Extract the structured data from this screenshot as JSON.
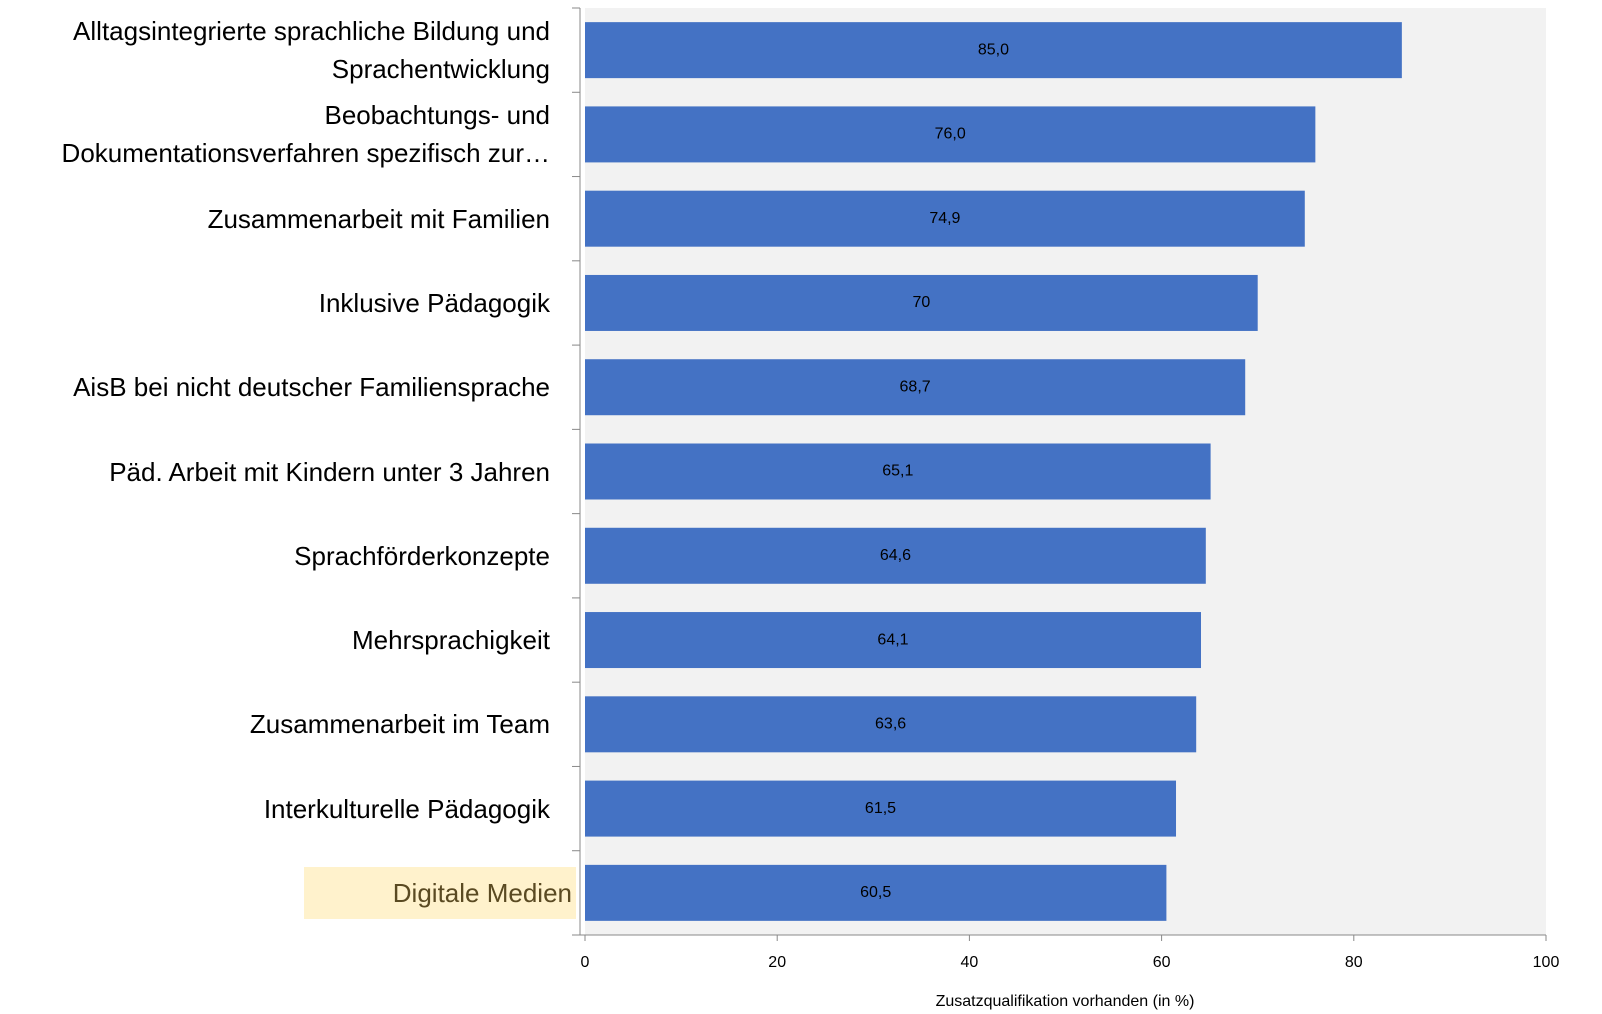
{
  "chart_data": {
    "type": "barh",
    "categories": [
      "Alltagsintegrierte sprachliche Bildung und\nSprachentwicklung",
      "Beobachtungs- und\nDokumentationsverfahren spezifisch zur…",
      "Zusammenarbeit mit Familien",
      "Inklusive Pädagogik",
      "AisB bei nicht deutscher Familiensprache",
      "Päd. Arbeit mit Kindern unter 3 Jahren",
      "Sprachförderkonzepte",
      "Mehrsprachigkeit",
      "Zusammenarbeit im Team",
      "Interkulturelle Pädagogik",
      "Digitale Medien"
    ],
    "values": [
      85.0,
      76.0,
      74.9,
      70,
      68.7,
      65.1,
      64.6,
      64.1,
      63.6,
      61.5,
      60.5
    ],
    "value_labels": [
      "85,0",
      "76,0",
      "74,9",
      "70",
      "68,7",
      "65,1",
      "64,6",
      "64,1",
      "63,6",
      "61,5",
      "60,5"
    ],
    "color": "#4472c4",
    "x_label": "Zusatzqualifikation vorhanden (in %)",
    "xlim": [
      0,
      100
    ],
    "xticks": [
      0,
      20,
      40,
      60,
      80,
      100
    ],
    "highlight": {
      "index": 10,
      "color": "#fff2cc",
      "text_color": "#5a4a22"
    }
  }
}
